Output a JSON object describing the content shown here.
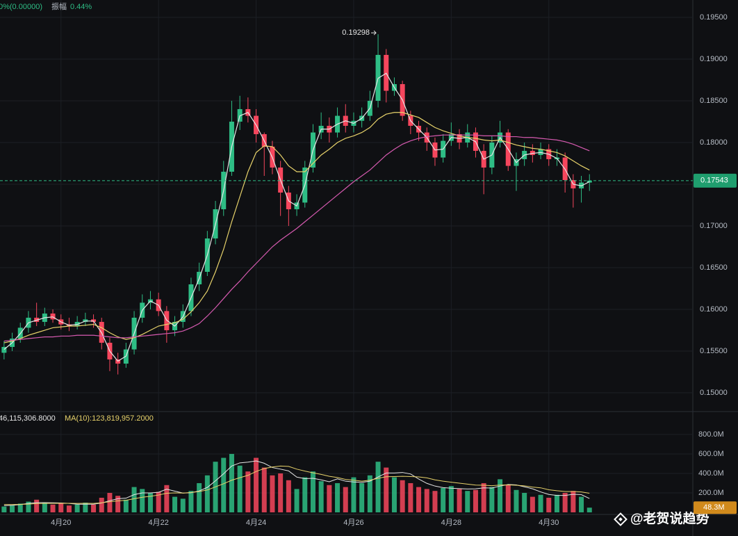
{
  "chart_data": [
    {
      "type": "candlestick",
      "header": {
        "change": "0%(0.00000)",
        "amplitude_label": "振幅",
        "amplitude": "0.44%"
      },
      "categories": [
        null,
        null,
        null,
        null,
        null,
        null,
        null,
        "4月20",
        null,
        null,
        null,
        null,
        null,
        null,
        null,
        null,
        null,
        null,
        null,
        "4月22",
        null,
        null,
        null,
        null,
        null,
        null,
        null,
        null,
        null,
        null,
        null,
        "4月24",
        null,
        null,
        null,
        null,
        null,
        null,
        null,
        null,
        null,
        null,
        null,
        "4月26",
        null,
        null,
        null,
        null,
        null,
        null,
        null,
        null,
        null,
        null,
        null,
        "4月28",
        null,
        null,
        null,
        null,
        null,
        null,
        null,
        null,
        null,
        null,
        null,
        "4月30",
        null,
        null,
        null,
        null,
        null
      ],
      "open": [
        0.1548,
        0.1555,
        0.1565,
        0.1578,
        0.159,
        0.1585,
        0.1595,
        0.1588,
        0.1582,
        0.158,
        0.1585,
        0.1588,
        0.1585,
        0.156,
        0.154,
        0.1535,
        0.1552,
        0.159,
        0.1608,
        0.1612,
        0.1598,
        0.1575,
        0.1585,
        0.1598,
        0.163,
        0.1645,
        0.1685,
        0.172,
        0.1765,
        0.1825,
        0.184,
        0.1832,
        0.181,
        0.1795,
        0.177,
        0.174,
        0.172,
        0.1728,
        0.177,
        0.1812,
        0.182,
        0.1812,
        0.1832,
        0.182,
        0.1826,
        0.1832,
        0.185,
        0.1905,
        0.1862,
        0.187,
        0.1832,
        0.182,
        0.1812,
        0.18,
        0.1782,
        0.1802,
        0.181,
        0.18,
        0.1812,
        0.179,
        0.177,
        0.18,
        0.1812,
        0.1772,
        0.178,
        0.179,
        0.1785,
        0.1792,
        0.178,
        0.1782,
        0.1755,
        0.1745,
        0.1752
      ],
      "high": [
        0.1562,
        0.1572,
        0.1584,
        0.1598,
        0.1608,
        0.1602,
        0.16,
        0.1594,
        0.159,
        0.1592,
        0.1596,
        0.1594,
        0.159,
        0.1566,
        0.1548,
        0.156,
        0.1598,
        0.1618,
        0.1622,
        0.162,
        0.1604,
        0.1592,
        0.1606,
        0.1638,
        0.1656,
        0.1694,
        0.173,
        0.1778,
        0.185,
        0.1856,
        0.1854,
        0.184,
        0.1812,
        0.1802,
        0.1778,
        0.1748,
        0.1738,
        0.1778,
        0.1822,
        0.1836,
        0.183,
        0.1842,
        0.1846,
        0.1836,
        0.1842,
        0.1862,
        0.19298,
        0.1912,
        0.1878,
        0.1874,
        0.1838,
        0.1826,
        0.1818,
        0.1806,
        0.181,
        0.1824,
        0.1816,
        0.1822,
        0.1818,
        0.1798,
        0.1808,
        0.1826,
        0.1816,
        0.1788,
        0.18,
        0.1798,
        0.18,
        0.1798,
        0.1792,
        0.1788,
        0.1762,
        0.176,
        0.1762
      ],
      "low": [
        0.154,
        0.155,
        0.156,
        0.1572,
        0.158,
        0.158,
        0.1584,
        0.1576,
        0.1574,
        0.1576,
        0.158,
        0.1578,
        0.1552,
        0.1526,
        0.1522,
        0.153,
        0.1546,
        0.1584,
        0.16,
        0.1592,
        0.156,
        0.1568,
        0.1578,
        0.1592,
        0.1622,
        0.164,
        0.1678,
        0.1712,
        0.176,
        0.1815,
        0.1824,
        0.18,
        0.176,
        0.1762,
        0.1712,
        0.17,
        0.1712,
        0.1722,
        0.1764,
        0.1804,
        0.18,
        0.1806,
        0.1812,
        0.1812,
        0.1818,
        0.1826,
        0.1842,
        0.1848,
        0.1856,
        0.1826,
        0.181,
        0.1802,
        0.179,
        0.1772,
        0.1776,
        0.1796,
        0.1792,
        0.1794,
        0.1782,
        0.1738,
        0.1762,
        0.1794,
        0.1766,
        0.1742,
        0.1772,
        0.1776,
        0.178,
        0.1772,
        0.1772,
        0.174,
        0.1722,
        0.1728,
        0.1742
      ],
      "close": [
        0.1555,
        0.1565,
        0.1578,
        0.159,
        0.1585,
        0.1595,
        0.1588,
        0.1582,
        0.158,
        0.1585,
        0.1588,
        0.1585,
        0.156,
        0.154,
        0.1535,
        0.1552,
        0.159,
        0.1608,
        0.1612,
        0.1598,
        0.1575,
        0.1585,
        0.1598,
        0.163,
        0.1645,
        0.1685,
        0.172,
        0.1765,
        0.1825,
        0.184,
        0.1832,
        0.181,
        0.1795,
        0.177,
        0.174,
        0.172,
        0.1728,
        0.177,
        0.1812,
        0.182,
        0.1812,
        0.1832,
        0.182,
        0.1826,
        0.1832,
        0.185,
        0.1905,
        0.1862,
        0.187,
        0.1832,
        0.182,
        0.1812,
        0.18,
        0.1782,
        0.1802,
        0.181,
        0.18,
        0.1812,
        0.179,
        0.177,
        0.18,
        0.1812,
        0.1772,
        0.178,
        0.179,
        0.1785,
        0.1792,
        0.178,
        0.1782,
        0.1755,
        0.1745,
        0.1752,
        0.17543
      ],
      "up_color": "#2ebd85",
      "down_color": "#f6465d",
      "moving_averages": [
        {
          "color": "#e6e6e6",
          "values": [
            0.1552,
            0.156,
            0.1571,
            0.1584,
            0.1587,
            0.159,
            0.1591,
            0.1585,
            0.1581,
            0.1582,
            0.1586,
            0.1586,
            0.1572,
            0.155,
            0.1538,
            0.1544,
            0.1571,
            0.1599,
            0.161,
            0.1605,
            0.1587,
            0.158,
            0.1591,
            0.1614,
            0.1637,
            0.1665,
            0.1702,
            0.1742,
            0.1795,
            0.1832,
            0.1836,
            0.1821,
            0.1802,
            0.1782,
            0.1755,
            0.173,
            0.1724,
            0.1749,
            0.1791,
            0.1816,
            0.1816,
            0.1822,
            0.1826,
            0.1823,
            0.1829,
            0.1841,
            0.1877,
            0.1883,
            0.1866,
            0.1851,
            0.1826,
            0.1816,
            0.1806,
            0.1791,
            0.1792,
            0.1806,
            0.1805,
            0.1806,
            0.1801,
            0.178,
            0.1785,
            0.1806,
            0.1792,
            0.1776,
            0.1785,
            0.1787,
            0.1788,
            0.1786,
            0.1781,
            0.1768,
            0.175,
            0.1748,
            0.1753
          ]
        },
        {
          "color": "#e8d36b",
          "values": [
            0.156,
            0.1562,
            0.1565,
            0.1569,
            0.1572,
            0.1575,
            0.1578,
            0.1579,
            0.158,
            0.158,
            0.1581,
            0.1582,
            0.1578,
            0.1572,
            0.1567,
            0.1564,
            0.1566,
            0.157,
            0.1575,
            0.158,
            0.1582,
            0.1584,
            0.1588,
            0.1597,
            0.1608,
            0.1622,
            0.1645,
            0.1672,
            0.1705,
            0.1735,
            0.1765,
            0.1788,
            0.1796,
            0.1795,
            0.1785,
            0.1772,
            0.1765,
            0.1765,
            0.1775,
            0.1785,
            0.1792,
            0.18,
            0.1805,
            0.1808,
            0.1812,
            0.1818,
            0.1828,
            0.1834,
            0.1836,
            0.1836,
            0.1833,
            0.183,
            0.1824,
            0.1818,
            0.1814,
            0.1811,
            0.1808,
            0.1806,
            0.1805,
            0.1803,
            0.1802,
            0.1803,
            0.18,
            0.1797,
            0.1795,
            0.1793,
            0.1792,
            0.179,
            0.1788,
            0.1784,
            0.1778,
            0.1772,
            0.1767
          ]
        },
        {
          "color": "#d65ab0",
          "values": [
            0.1562,
            0.1563,
            0.1564,
            0.1565,
            0.1566,
            0.1567,
            0.1567,
            0.1568,
            0.1568,
            0.1569,
            0.1569,
            0.1569,
            0.1568,
            0.1567,
            0.1566,
            0.1566,
            0.1567,
            0.1568,
            0.1569,
            0.157,
            0.1571,
            0.1572,
            0.1574,
            0.1578,
            0.1583,
            0.1592,
            0.1602,
            0.1613,
            0.1624,
            0.1634,
            0.1645,
            0.1655,
            0.1665,
            0.1675,
            0.1683,
            0.169,
            0.1697,
            0.1705,
            0.1713,
            0.1721,
            0.1729,
            0.1737,
            0.1745,
            0.1753,
            0.176,
            0.1767,
            0.1776,
            0.1785,
            0.1792,
            0.1798,
            0.1802,
            0.1805,
            0.1807,
            0.1808,
            0.1809,
            0.1809,
            0.1809,
            0.1809,
            0.1809,
            0.1808,
            0.1808,
            0.1808,
            0.1807,
            0.1807,
            0.1806,
            0.1806,
            0.1805,
            0.1804,
            0.1803,
            0.1801,
            0.1798,
            0.1794,
            0.179
          ]
        }
      ],
      "last_price": 0.17543,
      "ylim": [
        0.14792,
        0.19708
      ],
      "yticks": [
        {
          "value": 0.15,
          "label": "0.15000"
        },
        {
          "value": 0.155,
          "label": "0.15500"
        },
        {
          "value": 0.16,
          "label": "0.16000"
        },
        {
          "value": 0.165,
          "label": "0.16500"
        },
        {
          "value": 0.17,
          "label": "0.17000"
        },
        {
          "value": 0.175,
          "label": "0.17500"
        },
        {
          "value": 0.18,
          "label": "0.18000"
        },
        {
          "value": 0.185,
          "label": "0.18500"
        },
        {
          "value": 0.19,
          "label": "0.19000"
        },
        {
          "value": 0.195,
          "label": "0.19500"
        }
      ],
      "grid": true
    },
    {
      "type": "volume",
      "header": {
        "ma5": "46,115,306.8000",
        "ma10": "MA(10):123,819,957.2000"
      },
      "values": [
        60000000.0,
        70000000.0,
        90000000.0,
        110000000.0,
        130000000.0,
        100000000.0,
        80000000.0,
        90000000.0,
        70000000.0,
        80000000.0,
        100000000.0,
        80000000.0,
        150000000.0,
        200000000.0,
        170000000.0,
        130000000.0,
        260000000.0,
        240000000.0,
        200000000.0,
        210000000.0,
        280000000.0,
        160000000.0,
        140000000.0,
        220000000.0,
        300000000.0,
        380000000.0,
        520000000.0,
        560000000.0,
        600000000.0,
        480000000.0,
        420000000.0,
        560000000.0,
        460000000.0,
        380000000.0,
        400000000.0,
        330000000.0,
        240000000.0,
        360000000.0,
        420000000.0,
        320000000.0,
        280000000.0,
        300000000.0,
        260000000.0,
        360000000.0,
        300000000.0,
        380000000.0,
        520000000.0,
        460000000.0,
        360000000.0,
        330000000.0,
        300000000.0,
        260000000.0,
        240000000.0,
        220000000.0,
        250000000.0,
        270000000.0,
        240000000.0,
        220000000.0,
        230000000.0,
        300000000.0,
        260000000.0,
        340000000.0,
        280000000.0,
        230000000.0,
        200000000.0,
        160000000.0,
        180000000.0,
        150000000.0,
        180000000.0,
        200000000.0,
        220000000.0,
        160000000.0,
        48300000.0
      ],
      "last_label": "48.3M",
      "moving_averages": [
        {
          "color": "#e6e6e6",
          "values": [
            70000000.0,
            72000000.0,
            80000000.0,
            92000000.0,
            100000000.0,
            100000000.0,
            98000000.0,
            96000000.0,
            92000000.0,
            84000000.0,
            84000000.0,
            84000000.0,
            96000000.0,
            120000000.0,
            140000000.0,
            146000000.0,
            182000000.0,
            200000000.0,
            200000000.0,
            206000000.0,
            238000000.0,
            218000000.0,
            198000000.0,
            202000000.0,
            220000000.0,
            256000000.0,
            324000000.0,
            396000000.0,
            476000000.0,
            508000000.0,
            516000000.0,
            528000000.0,
            504000000.0,
            460000000.0,
            444000000.0,
            426000000.0,
            362000000.0,
            346000000.0,
            350000000.0,
            334000000.0,
            314000000.0,
            344000000.0,
            320000000.0,
            312000000.0,
            308000000.0,
            320000000.0,
            364000000.0,
            404000000.0,
            404000000.0,
            410000000.0,
            394000000.0,
            342000000.0,
            298000000.0,
            270000000.0,
            254000000.0,
            248000000.0,
            244000000.0,
            240000000.0,
            242000000.0,
            252000000.0,
            250000000.0,
            270000000.0,
            286000000.0,
            282000000.0,
            262000000.0,
            242000000.0,
            210000000.0,
            184000000.0,
            174000000.0,
            174000000.0,
            186000000.0,
            182000000.0,
            142000000.0
          ]
        },
        {
          "color": "#e8d36b",
          "values": [
            80000000.0,
            80000000.0,
            82000000.0,
            85000000.0,
            90000000.0,
            92000000.0,
            93000000.0,
            94000000.0,
            93000000.0,
            92000000.0,
            93000000.0,
            92000000.0,
            98000000.0,
            110000000.0,
            118000000.0,
            124000000.0,
            140000000.0,
            155000000.0,
            165000000.0,
            178000000.0,
            196000000.0,
            200000000.0,
            198000000.0,
            204000000.0,
            214000000.0,
            230000000.0,
            262000000.0,
            294000000.0,
            330000000.0,
            356000000.0,
            380000000.0,
            420000000.0,
            450000000.0,
            466000000.0,
            476000000.0,
            472000000.0,
            444000000.0,
            424000000.0,
            406000000.0,
            390000000.0,
            370000000.0,
            358000000.0,
            338000000.0,
            330000000.0,
            320000000.0,
            330000000.0,
            350000000.0,
            366000000.0,
            368000000.0,
            370000000.0,
            368000000.0,
            364000000.0,
            354000000.0,
            334000000.0,
            320000000.0,
            310000000.0,
            300000000.0,
            290000000.0,
            280000000.0,
            278000000.0,
            274000000.0,
            280000000.0,
            282000000.0,
            278000000.0,
            272000000.0,
            260000000.0,
            252000000.0,
            232000000.0,
            222000000.0,
            214000000.0,
            214000000.0,
            210000000.0,
            196000000.0
          ]
        }
      ],
      "ylim": [
        0,
        978000000.0
      ],
      "yticks": [
        {
          "value": 200000000.0,
          "label": "200.0M"
        },
        {
          "value": 400000000.0,
          "label": "400.0M"
        },
        {
          "value": 600000000.0,
          "label": "600.0M"
        },
        {
          "value": 800000000.0,
          "label": "800.0M"
        }
      ]
    }
  ],
  "watermark": "@老贺说趋势"
}
